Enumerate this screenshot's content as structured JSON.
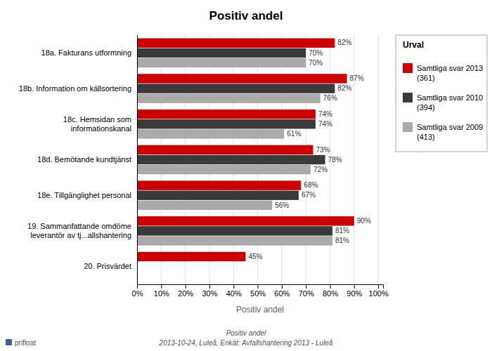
{
  "chart_data": {
    "type": "bar",
    "orientation": "horizontal",
    "title": "Positiv andel",
    "xlabel": "Positiv andel",
    "categories": [
      "20. Prisvärdet",
      "19. Sammanfattande omdöme\nleverantör av tj...allshantering",
      "18e. Tillgänglighet personal",
      "18d. Bemötande kundtjänst",
      "18c. Hemsidan som\ninformationskanal",
      "18b. Information om källsortering",
      "18a. Fakturans utformning"
    ],
    "series": [
      {
        "name": "Samtliga svar 2013\n(361)",
        "color": "#cc0000",
        "values": [
          45,
          90,
          68,
          73,
          74,
          87,
          82
        ],
        "value_labels": [
          "45%",
          "90%",
          "68%",
          "73%",
          "74%",
          "87%",
          "82%"
        ]
      },
      {
        "name": "Samtliga svar 2010\n(394)",
        "color": "#3a3a3a",
        "values": [
          null,
          81,
          67,
          78,
          74,
          82,
          70
        ],
        "value_labels": [
          null,
          "81%",
          "67%",
          "78%",
          "74%",
          "82%",
          "70%"
        ]
      },
      {
        "name": "Samtliga svar 2009\n(413)",
        "color": "#aaaaaa",
        "values": [
          null,
          81,
          56,
          72,
          61,
          76,
          70
        ],
        "value_labels": [
          null,
          "81%",
          "56%",
          "72%",
          "61%",
          "76%",
          "70%"
        ]
      }
    ],
    "data_labels": true,
    "legend": "right",
    "legend_title": "Urval",
    "grid": true,
    "xlim": [
      0,
      102
    ],
    "xticks": [
      {
        "value": 0,
        "label": "0%"
      },
      {
        "value": 10,
        "label": "10%"
      },
      {
        "value": 20,
        "label": "20%"
      },
      {
        "value": 30,
        "label": "30%"
      },
      {
        "value": 40,
        "label": "40%"
      },
      {
        "value": 50,
        "label": "50%"
      },
      {
        "value": 60,
        "label": "60%"
      },
      {
        "value": 70,
        "label": "70%"
      },
      {
        "value": 80,
        "label": "80%"
      },
      {
        "value": 90,
        "label": "90%"
      },
      {
        "value": 100,
        "label": "100%"
      }
    ],
    "annotations": [
      "Positiv andel",
      "2013-10-24, Luleå, Enkät: Avfallshantering 2013 - Luleå",
      "prifloat"
    ]
  }
}
